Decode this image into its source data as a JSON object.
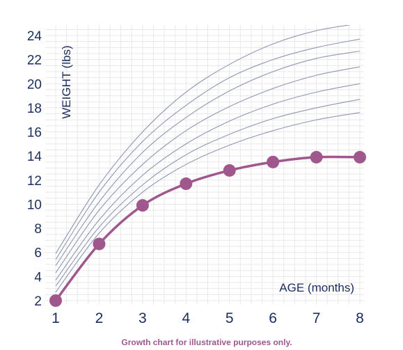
{
  "chart_data": {
    "type": "line",
    "xlabel": "AGE (months)",
    "ylabel": "WEIGHT (lbs)",
    "xlim": [
      1,
      8
    ],
    "ylim": [
      2,
      25
    ],
    "x_ticks": [
      "1",
      "2",
      "3",
      "4",
      "5",
      "6",
      "7",
      "8"
    ],
    "y_ticks": [
      "2",
      "4",
      "6",
      "8",
      "10",
      "12",
      "14",
      "16",
      "18",
      "20",
      "22",
      "24"
    ],
    "grid": true,
    "series": [
      {
        "x": [
          1,
          2,
          3,
          4,
          5,
          6,
          7,
          8
        ],
        "values": [
          2.0,
          6.7,
          9.9,
          11.7,
          12.8,
          13.5,
          13.9,
          13.9
        ],
        "color": "#a0588c",
        "style": "line-with-markers"
      }
    ],
    "reference_curves": {
      "color": "#8e97b3",
      "x": [
        1,
        2,
        3,
        4,
        5,
        6,
        7,
        8
      ],
      "curves": [
        [
          2.7,
          7.6,
          11.0,
          13.3,
          14.9,
          16.1,
          17.0,
          17.6
        ],
        [
          3.2,
          8.1,
          11.6,
          14.1,
          15.8,
          17.1,
          18.0,
          18.7
        ],
        [
          3.7,
          8.7,
          12.4,
          15.0,
          16.9,
          18.3,
          19.3,
          20.0
        ],
        [
          4.3,
          9.5,
          13.3,
          16.1,
          18.1,
          19.6,
          20.7,
          21.4
        ],
        [
          4.9,
          10.2,
          14.3,
          17.2,
          19.4,
          21.0,
          22.1,
          22.7
        ],
        [
          5.4,
          11.0,
          15.2,
          18.2,
          20.5,
          22.0,
          23.0,
          23.7
        ],
        [
          5.9,
          11.6,
          16.0,
          19.3,
          21.6,
          23.3,
          24.4,
          25.0
        ]
      ]
    }
  },
  "footnote": "Growth chart for illustrative purposes only."
}
